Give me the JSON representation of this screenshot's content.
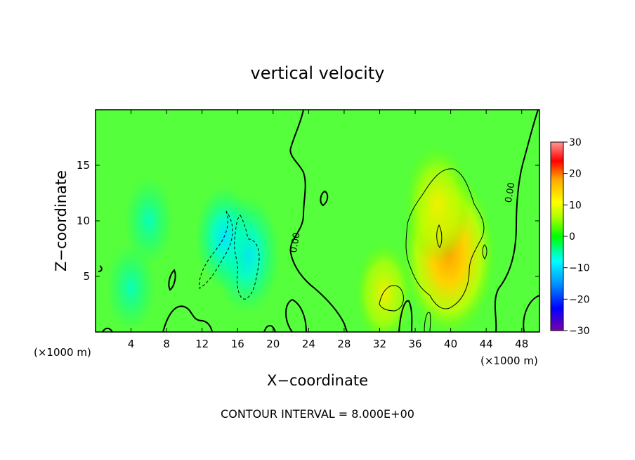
{
  "chart_data": {
    "type": "heatmap",
    "title": "vertical velocity",
    "xlabel": "X−coordinate",
    "ylabel": "Z−coordinate",
    "x_unit_left": "(×1000 m)",
    "x_unit_right": "(×1000 m)",
    "footer": "CONTOUR INTERVAL = 8.000E+00",
    "xlim": [
      0,
      50
    ],
    "ylim": [
      0,
      20
    ],
    "x_ticks": [
      4,
      8,
      12,
      16,
      20,
      24,
      28,
      32,
      36,
      40,
      44,
      48
    ],
    "y_ticks": [
      5,
      10,
      15
    ],
    "colorbar": {
      "ticks": [
        30,
        20,
        10,
        0,
        -10,
        -20,
        -30
      ],
      "tick_labels": [
        "30",
        "20",
        "10",
        "0",
        "−10",
        "−20",
        "−30"
      ],
      "range": [
        -30,
        30
      ],
      "colors": [
        "#7b00a8",
        "#0000ff",
        "#0095ff",
        "#00ffff",
        "#00ff00",
        "#aaff00",
        "#ffff00",
        "#ffaa00",
        "#ff0000",
        "#ff9999"
      ]
    },
    "contour_labels": [
      {
        "text": "0.00",
        "x": 22.8,
        "y": 8
      },
      {
        "text": "0.00",
        "x": 47.0,
        "y": 12.5
      }
    ],
    "field_features": [
      {
        "kind": "updraft",
        "x": 39.8,
        "y": 7,
        "peak": 14
      },
      {
        "kind": "updraft",
        "x": 38.5,
        "y": 11.5,
        "peak": 8
      },
      {
        "kind": "updraft",
        "x": 32.5,
        "y": 3.5,
        "peak": 6
      },
      {
        "kind": "downdraft",
        "x": 17,
        "y": 7,
        "peak": -8
      },
      {
        "kind": "downdraft",
        "x": 14.5,
        "y": 8.5,
        "peak": -6
      },
      {
        "kind": "downdraft",
        "x": 6,
        "y": 10,
        "peak": -4
      },
      {
        "kind": "downdraft",
        "x": 4,
        "y": 4,
        "peak": -4
      }
    ]
  }
}
